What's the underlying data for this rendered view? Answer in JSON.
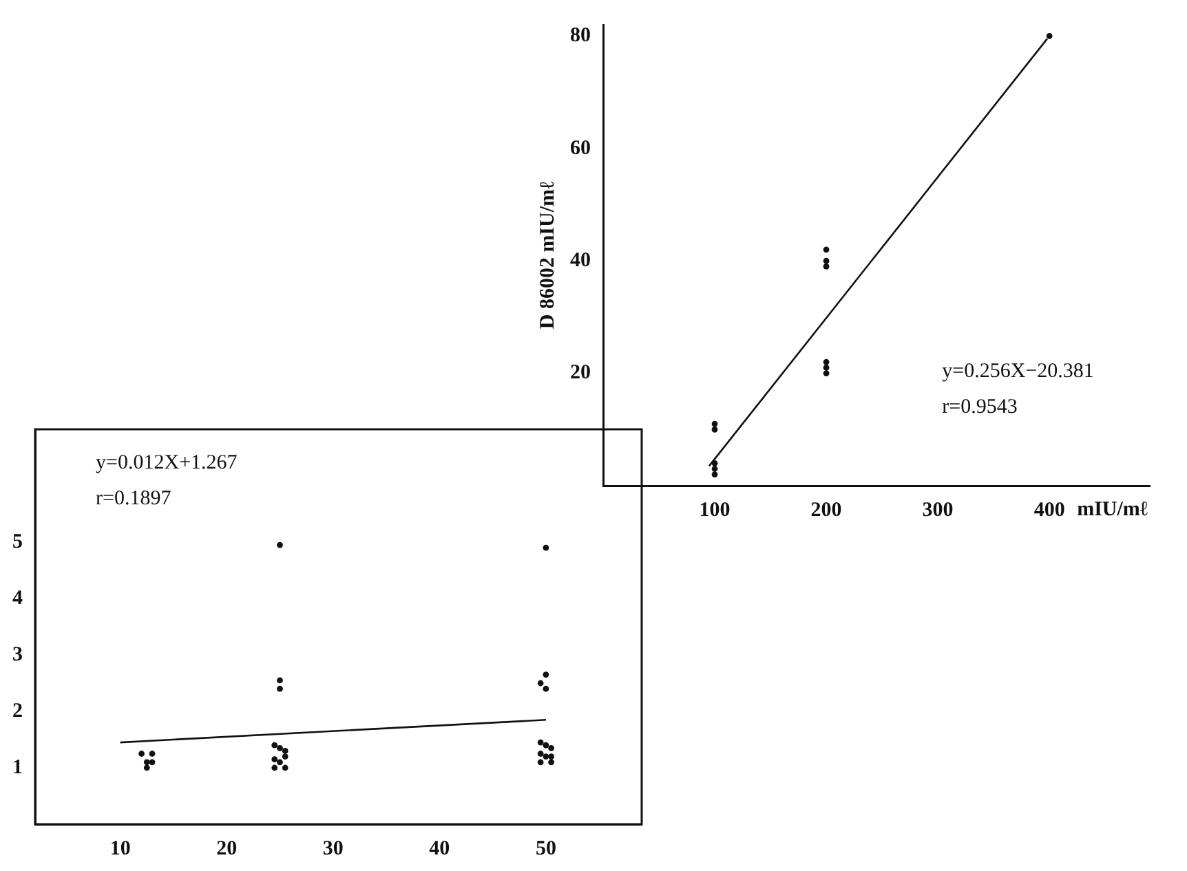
{
  "chart_data": [
    {
      "type": "scatter",
      "ylabel": "D 86002 mIU/mℓ",
      "xlabel": "mIU/mℓ",
      "xlim": [
        0,
        490
      ],
      "xticks": [
        100,
        200,
        300,
        400
      ],
      "ylim": [
        0,
        82
      ],
      "yticks": [
        20,
        40,
        60,
        80
      ],
      "grid": false,
      "legend": false,
      "annotations": [
        "y=0.256X−20.381",
        "r=0.9543"
      ],
      "series": [
        {
          "marker": "circle",
          "color": "#111111",
          "x": [
            100,
            100,
            100,
            100,
            100,
            200,
            200,
            200,
            200,
            200,
            200,
            400
          ],
          "values": [
            2,
            3,
            4,
            10,
            11,
            39,
            40,
            42,
            20,
            21,
            22,
            80
          ]
        },
        {
          "type": "line",
          "marker": "none",
          "color": "#111111",
          "x": [
            95,
            398
          ],
          "values": [
            3.5,
            79.5
          ]
        }
      ]
    },
    {
      "type": "scatter",
      "xlim": [
        2,
        59
      ],
      "xticks": [
        10,
        20,
        30,
        40,
        50
      ],
      "ylim": [
        0,
        7
      ],
      "yticks": [
        1,
        2,
        3,
        4,
        5
      ],
      "grid": false,
      "legend": false,
      "annotations": [
        "y=0.012X+1.267",
        "r=0.1897"
      ],
      "series": [
        {
          "marker": "circle",
          "color": "#111111",
          "x": [
            12,
            13,
            12.5,
            13,
            12.5,
            25,
            25,
            25,
            24.5,
            25,
            25.5,
            24.5,
            25,
            25.5,
            24.5,
            25.5,
            50,
            50,
            49.5,
            50,
            49.5,
            50,
            50.5,
            49.5,
            50,
            50.5,
            49.5,
            50.5
          ],
          "values": [
            1.25,
            1.25,
            1.1,
            1.1,
            1.0,
            4.95,
            2.55,
            2.4,
            1.4,
            1.35,
            1.3,
            1.15,
            1.1,
            1.2,
            1.0,
            1.0,
            4.9,
            2.65,
            2.5,
            2.4,
            1.45,
            1.4,
            1.35,
            1.25,
            1.2,
            1.2,
            1.1,
            1.1
          ]
        },
        {
          "type": "line",
          "marker": "none",
          "color": "#111111",
          "x": [
            10,
            50
          ],
          "values": [
            1.45,
            1.85
          ]
        }
      ]
    }
  ]
}
